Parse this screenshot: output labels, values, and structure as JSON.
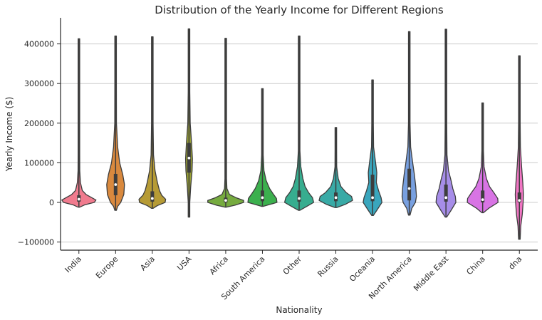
{
  "chart_data": {
    "type": "violin",
    "title": "Distribution of the Yearly Income for Different Regions",
    "xlabel": "Nationality",
    "ylabel": "Yearly Income ($)",
    "ylim": [
      -120000,
      460000
    ],
    "yticks": [
      -100000,
      0,
      100000,
      200000,
      300000,
      400000
    ],
    "ytick_labels": [
      "−100000",
      "0",
      "100000",
      "200000",
      "300000",
      "400000"
    ],
    "grid": "horizontal",
    "categories": [
      "India",
      "Europe",
      "Asia",
      "USA",
      "Africa",
      "South America",
      "Other",
      "Russia",
      "Oceania",
      "North America",
      "Middle East",
      "China",
      "dna"
    ],
    "colors": [
      "#f07b8e",
      "#d9893e",
      "#b69b35",
      "#9aa234",
      "#76ab3f",
      "#3cb04e",
      "#37ad8f",
      "#39aaa6",
      "#3aa6bd",
      "#78a0e0",
      "#a68de8",
      "#d874e4",
      "#f075c3"
    ],
    "violins": [
      {
        "category": "India",
        "min": -12000,
        "max": 413000,
        "q1": 2000,
        "median": 8000,
        "q3": 18000,
        "profile": [
          [
            -12000,
            0.02
          ],
          [
            -6000,
            0.35
          ],
          [
            0,
            0.9
          ],
          [
            6000,
            1.0
          ],
          [
            12000,
            0.75
          ],
          [
            20000,
            0.42
          ],
          [
            30000,
            0.2
          ],
          [
            50000,
            0.09
          ],
          [
            80000,
            0.05
          ],
          [
            120000,
            0.025
          ],
          [
            200000,
            0.012
          ],
          [
            413000,
            0.004
          ]
        ]
      },
      {
        "category": "Europe",
        "min": -20000,
        "max": 420000,
        "q1": 18000,
        "median": 45000,
        "q3": 72000,
        "profile": [
          [
            -20000,
            0.02
          ],
          [
            -10000,
            0.12
          ],
          [
            0,
            0.3
          ],
          [
            20000,
            0.48
          ],
          [
            45000,
            0.52
          ],
          [
            70000,
            0.42
          ],
          [
            100000,
            0.24
          ],
          [
            140000,
            0.12
          ],
          [
            200000,
            0.05
          ],
          [
            300000,
            0.02
          ],
          [
            420000,
            0.005
          ]
        ]
      },
      {
        "category": "Asia",
        "min": -15000,
        "max": 418000,
        "q1": 2000,
        "median": 10000,
        "q3": 28000,
        "profile": [
          [
            -15000,
            0.02
          ],
          [
            -8000,
            0.3
          ],
          [
            0,
            0.75
          ],
          [
            8000,
            0.78
          ],
          [
            18000,
            0.55
          ],
          [
            30000,
            0.42
          ],
          [
            50000,
            0.3
          ],
          [
            80000,
            0.16
          ],
          [
            120000,
            0.07
          ],
          [
            200000,
            0.025
          ],
          [
            418000,
            0.005
          ]
        ]
      },
      {
        "category": "USA",
        "min": -37000,
        "max": 438000,
        "q1": 75000,
        "median": 112000,
        "q3": 150000,
        "profile": [
          [
            -37000,
            0.01
          ],
          [
            0,
            0.04
          ],
          [
            40000,
            0.1
          ],
          [
            80000,
            0.18
          ],
          [
            110000,
            0.2
          ],
          [
            150000,
            0.15
          ],
          [
            200000,
            0.07
          ],
          [
            280000,
            0.035
          ],
          [
            350000,
            0.02
          ],
          [
            438000,
            0.006
          ]
        ]
      },
      {
        "category": "Africa",
        "min": -12000,
        "max": 414000,
        "q1": 0,
        "median": 5000,
        "q3": 12000,
        "profile": [
          [
            -12000,
            0.02
          ],
          [
            -7000,
            0.55
          ],
          [
            0,
            1.05
          ],
          [
            5000,
            1.05
          ],
          [
            12000,
            0.6
          ],
          [
            20000,
            0.22
          ],
          [
            35000,
            0.07
          ],
          [
            60000,
            0.03
          ],
          [
            100000,
            0.015
          ],
          [
            200000,
            0.007
          ],
          [
            414000,
            0.003
          ]
        ]
      },
      {
        "category": "South America",
        "min": -10000,
        "max": 287000,
        "q1": 3000,
        "median": 12000,
        "q3": 30000,
        "profile": [
          [
            -10000,
            0.05
          ],
          [
            0,
            0.85
          ],
          [
            10000,
            0.82
          ],
          [
            22000,
            0.62
          ],
          [
            35000,
            0.42
          ],
          [
            55000,
            0.22
          ],
          [
            80000,
            0.09
          ],
          [
            120000,
            0.03
          ],
          [
            200000,
            0.01
          ],
          [
            287000,
            0.004
          ]
        ]
      },
      {
        "category": "Other",
        "min": -20000,
        "max": 420000,
        "q1": 2000,
        "median": 10000,
        "q3": 30000,
        "profile": [
          [
            -20000,
            0.02
          ],
          [
            -10000,
            0.45
          ],
          [
            0,
            0.85
          ],
          [
            12000,
            0.78
          ],
          [
            25000,
            0.55
          ],
          [
            40000,
            0.35
          ],
          [
            60000,
            0.22
          ],
          [
            90000,
            0.1
          ],
          [
            130000,
            0.04
          ],
          [
            200000,
            0.015
          ],
          [
            420000,
            0.004
          ]
        ]
      },
      {
        "category": "Russia",
        "min": -13000,
        "max": 189000,
        "q1": 3000,
        "median": 12000,
        "q3": 25000,
        "profile": [
          [
            -13000,
            0.05
          ],
          [
            -5000,
            0.55
          ],
          [
            5000,
            0.98
          ],
          [
            15000,
            0.92
          ],
          [
            25000,
            0.6
          ],
          [
            40000,
            0.3
          ],
          [
            60000,
            0.14
          ],
          [
            90000,
            0.05
          ],
          [
            130000,
            0.02
          ],
          [
            189000,
            0.005
          ]
        ]
      },
      {
        "category": "Oceania",
        "min": -33000,
        "max": 309000,
        "q1": 3000,
        "median": 12000,
        "q3": 70000,
        "profile": [
          [
            -33000,
            0.02
          ],
          [
            -20000,
            0.25
          ],
          [
            0,
            0.55
          ],
          [
            12000,
            0.5
          ],
          [
            30000,
            0.35
          ],
          [
            50000,
            0.22
          ],
          [
            75000,
            0.25
          ],
          [
            100000,
            0.18
          ],
          [
            140000,
            0.06
          ],
          [
            200000,
            0.02
          ],
          [
            309000,
            0.005
          ]
        ]
      },
      {
        "category": "North America",
        "min": -32000,
        "max": 431000,
        "q1": 5000,
        "median": 35000,
        "q3": 85000,
        "profile": [
          [
            -32000,
            0.02
          ],
          [
            -15000,
            0.15
          ],
          [
            0,
            0.36
          ],
          [
            15000,
            0.42
          ],
          [
            40000,
            0.38
          ],
          [
            70000,
            0.3
          ],
          [
            100000,
            0.2
          ],
          [
            140000,
            0.08
          ],
          [
            200000,
            0.03
          ],
          [
            300000,
            0.012
          ],
          [
            431000,
            0.004
          ]
        ]
      },
      {
        "category": "Middle East",
        "min": -37000,
        "max": 437000,
        "q1": 2000,
        "median": 12000,
        "q3": 45000,
        "profile": [
          [
            -37000,
            0.02
          ],
          [
            -20000,
            0.3
          ],
          [
            0,
            0.58
          ],
          [
            15000,
            0.55
          ],
          [
            35000,
            0.4
          ],
          [
            55000,
            0.3
          ],
          [
            80000,
            0.15
          ],
          [
            120000,
            0.06
          ],
          [
            200000,
            0.02
          ],
          [
            437000,
            0.005
          ]
        ]
      },
      {
        "category": "China",
        "min": -26000,
        "max": 251000,
        "q1": 0,
        "median": 7000,
        "q3": 30000,
        "profile": [
          [
            -26000,
            0.02
          ],
          [
            -15000,
            0.35
          ],
          [
            0,
            0.9
          ],
          [
            10000,
            0.88
          ],
          [
            25000,
            0.65
          ],
          [
            40000,
            0.4
          ],
          [
            60000,
            0.22
          ],
          [
            90000,
            0.08
          ],
          [
            130000,
            0.03
          ],
          [
            200000,
            0.01
          ],
          [
            251000,
            0.004
          ]
        ]
      },
      {
        "category": "dna",
        "min": -93000,
        "max": 370000,
        "q1": 0,
        "median": 5000,
        "q3": 25000,
        "profile": [
          [
            -93000,
            0.01
          ],
          [
            -60000,
            0.08
          ],
          [
            -30000,
            0.17
          ],
          [
            0,
            0.22
          ],
          [
            20000,
            0.24
          ],
          [
            50000,
            0.2
          ],
          [
            90000,
            0.13
          ],
          [
            140000,
            0.06
          ],
          [
            200000,
            0.025
          ],
          [
            280000,
            0.01
          ],
          [
            370000,
            0.004
          ]
        ]
      }
    ]
  }
}
